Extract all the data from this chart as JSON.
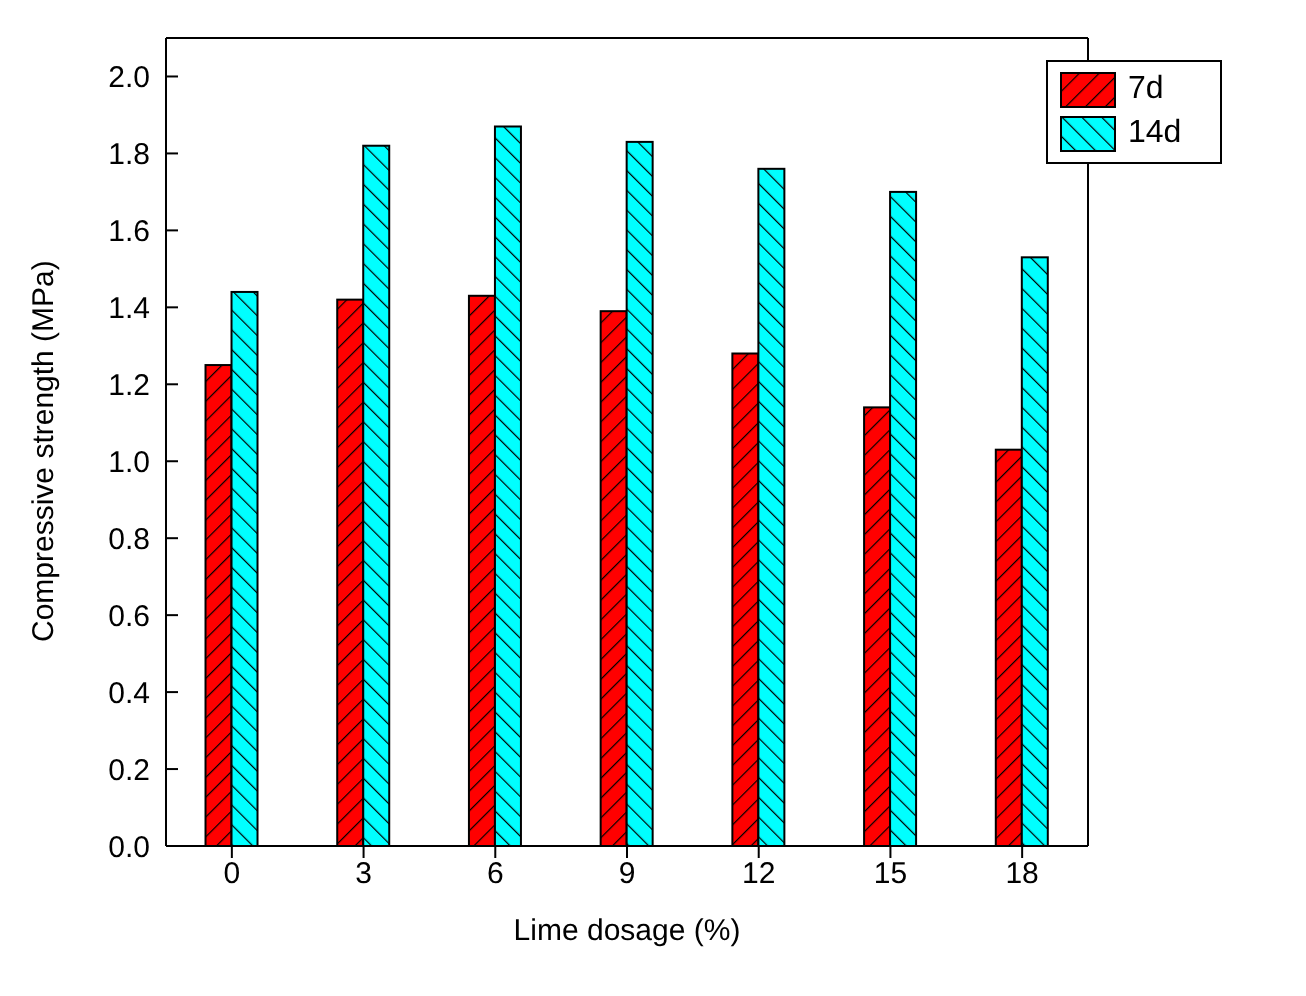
{
  "chart_data": {
    "type": "bar",
    "xlabel": "Lime dosage (%)",
    "ylabel": "Compressive strength (MPa)",
    "categories": [
      "0",
      "3",
      "6",
      "9",
      "12",
      "15",
      "18"
    ],
    "series": [
      {
        "name": "7d",
        "color": "#ff0000",
        "values": [
          1.25,
          1.42,
          1.43,
          1.39,
          1.28,
          1.14,
          1.03
        ]
      },
      {
        "name": "14d",
        "color": "#00ffff",
        "values": [
          1.44,
          1.82,
          1.87,
          1.83,
          1.76,
          1.7,
          1.53
        ]
      }
    ],
    "ylim": [
      0,
      2.1
    ],
    "yticks": [
      {
        "value": 0,
        "label": "0.0"
      },
      0.2,
      0.4,
      0.6,
      0.8,
      {
        "value": 1,
        "label": "1.0"
      },
      1.2,
      1.4,
      1.6,
      1.8,
      {
        "value": 2,
        "label": "2.0"
      }
    ],
    "legend": "top right",
    "grid": false
  }
}
